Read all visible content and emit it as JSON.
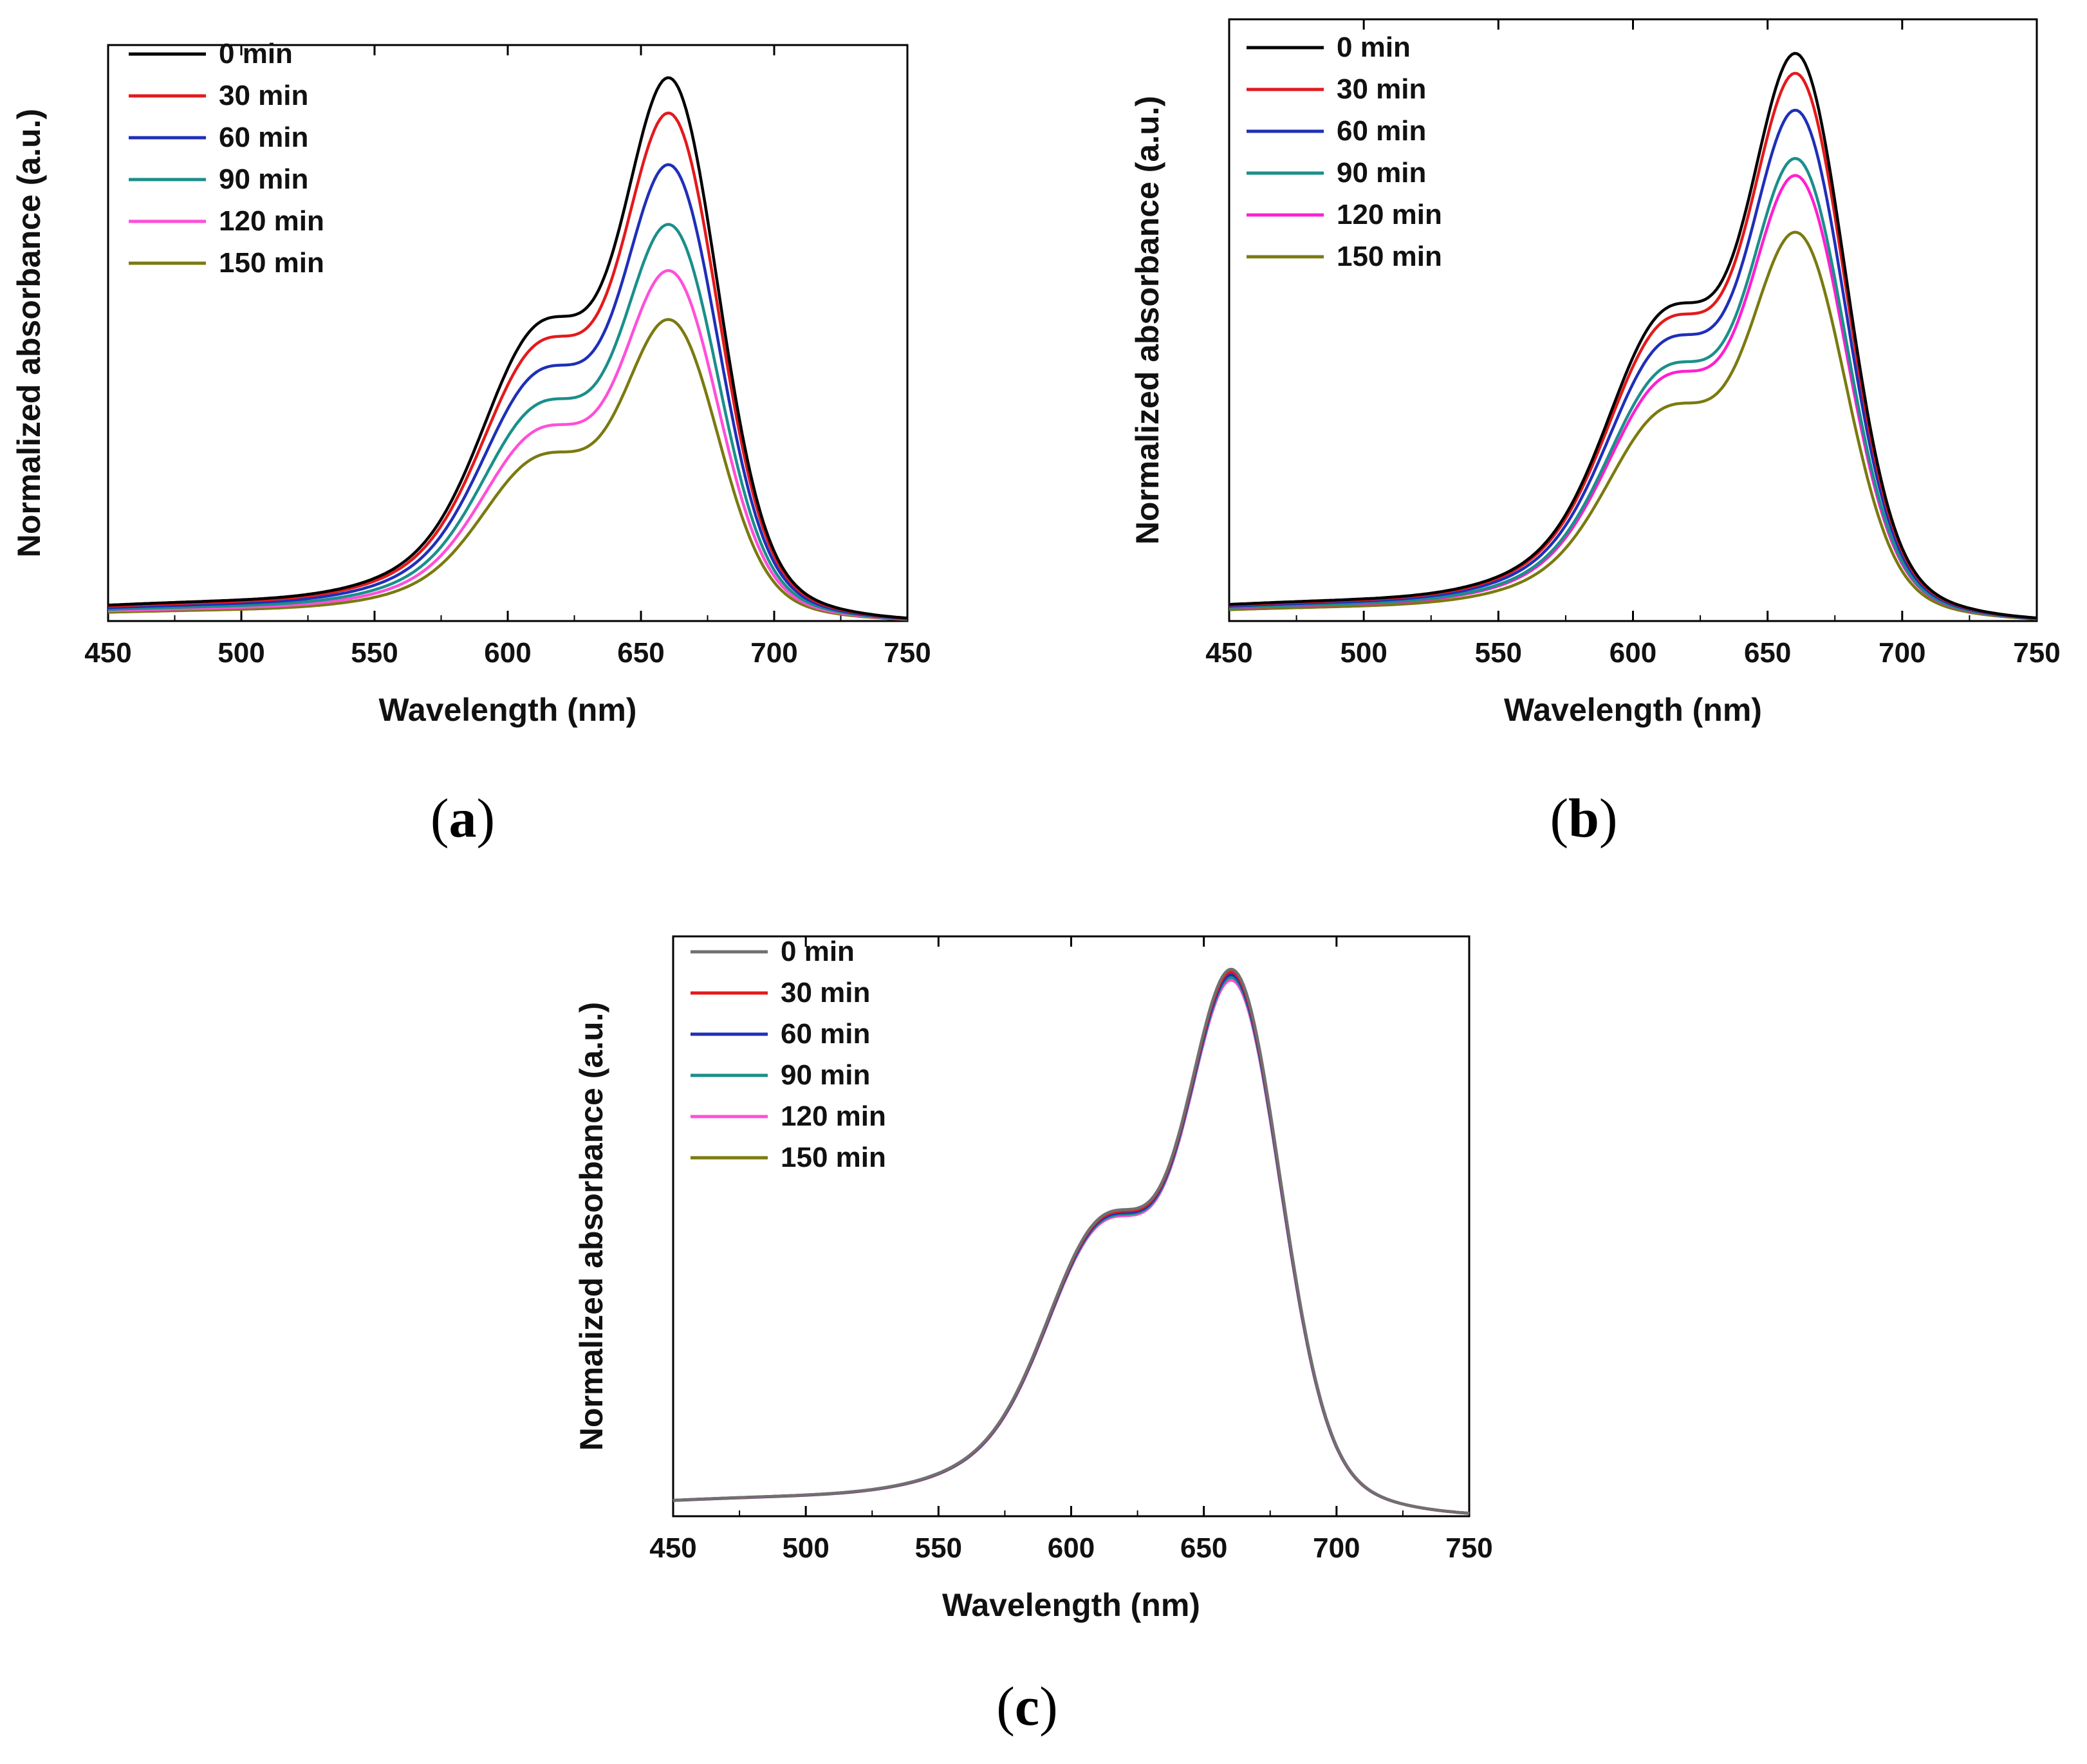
{
  "chart_data": [
    {
      "type": "line",
      "panel_label": "a",
      "xlabel": "Wavelength (nm)",
      "ylabel": "Normalized absorbance (a.u.)",
      "xlim": [
        450,
        750
      ],
      "xticks": [
        450,
        500,
        550,
        600,
        650,
        700,
        750
      ],
      "ylim": [
        0,
        1.06
      ],
      "y_ticks_shown": false,
      "legend": "top-left",
      "series": [
        {
          "name": "0 min",
          "color": "#000000",
          "peak_value": 1.0
        },
        {
          "name": "30 min",
          "color": "#e31a1c",
          "peak_value": 0.935
        },
        {
          "name": "60 min",
          "color": "#1f2fb8",
          "peak_value": 0.84
        },
        {
          "name": "90 min",
          "color": "#1a8f8a",
          "peak_value": 0.73
        },
        {
          "name": "120 min",
          "color": "#ff4fd8",
          "peak_value": 0.645
        },
        {
          "name": "150 min",
          "color": "#7a7a10",
          "peak_value": 0.555
        }
      ]
    },
    {
      "type": "line",
      "panel_label": "b",
      "xlabel": "Wavelength (nm)",
      "ylabel": "Normalized absorbance (a.u.)",
      "xlim": [
        450,
        750
      ],
      "xticks": [
        450,
        500,
        550,
        600,
        650,
        700,
        750
      ],
      "ylim": [
        0,
        1.06
      ],
      "y_ticks_shown": false,
      "legend": "top-left",
      "series": [
        {
          "name": "0 min",
          "color": "#000000",
          "peak_value": 1.0
        },
        {
          "name": "30 min",
          "color": "#e31a1c",
          "peak_value": 0.965
        },
        {
          "name": "60 min",
          "color": "#1f2fb8",
          "peak_value": 0.9
        },
        {
          "name": "90 min",
          "color": "#1a8f8a",
          "peak_value": 0.815
        },
        {
          "name": "120 min",
          "color": "#ff1fd0",
          "peak_value": 0.785
        },
        {
          "name": "150 min",
          "color": "#7a7a10",
          "peak_value": 0.685
        }
      ]
    },
    {
      "type": "line",
      "panel_label": "c",
      "xlabel": "Wavelength (nm)",
      "ylabel": "Normalized absorbance (a.u.)",
      "xlim": [
        450,
        750
      ],
      "xticks": [
        450,
        500,
        550,
        600,
        650,
        700,
        750
      ],
      "ylim": [
        0,
        1.06
      ],
      "y_ticks_shown": false,
      "legend": "top-left",
      "series": [
        {
          "name": "0 min",
          "color": "#707070",
          "peak_value": 1.0
        },
        {
          "name": "30 min",
          "color": "#e31a1c",
          "peak_value": 0.995
        },
        {
          "name": "60 min",
          "color": "#1f2fb8",
          "peak_value": 0.99
        },
        {
          "name": "90 min",
          "color": "#1a8f8a",
          "peak_value": 0.985
        },
        {
          "name": "120 min",
          "color": "#ff4fd8",
          "peak_value": 0.98
        },
        {
          "name": "150 min",
          "color": "#7a7a10",
          "peak_value": 0.99
        }
      ]
    }
  ],
  "captions": [
    {
      "open": "(",
      "letter": "a",
      "close": ")"
    },
    {
      "open": "(",
      "letter": "b",
      "close": ")"
    },
    {
      "open": "(",
      "letter": "c",
      "close": ")"
    }
  ]
}
